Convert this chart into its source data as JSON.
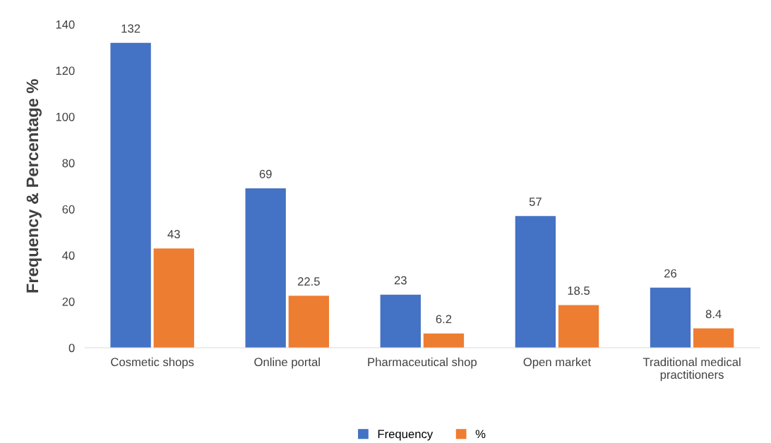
{
  "chart_data": {
    "type": "bar",
    "ylabel": "Frequency & Percentage %",
    "categories": [
      "Cosmetic shops",
      "Online portal",
      "Pharmaceutical shop",
      "Open market",
      "Traditional medical\npractitioners"
    ],
    "series": [
      {
        "name": "Frequency",
        "color": "#4472c4",
        "values": [
          132,
          69,
          23,
          57,
          26
        ]
      },
      {
        "name": "%",
        "color": "#ed7d31",
        "values": [
          43,
          22.5,
          6.2,
          18.5,
          8.4
        ]
      }
    ],
    "ylim": [
      0,
      140
    ],
    "yticks": [
      0,
      20,
      40,
      60,
      80,
      100,
      120,
      140
    ],
    "grid": false,
    "legend": "bottom",
    "data_labels": true
  }
}
